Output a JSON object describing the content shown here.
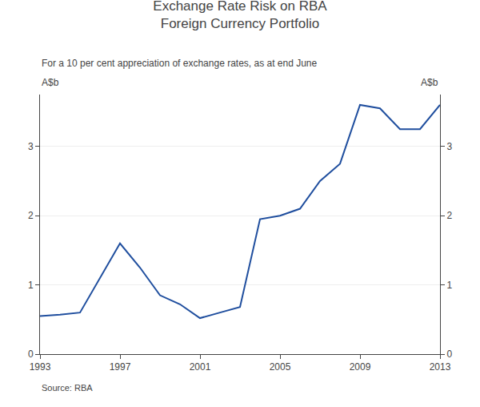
{
  "chart_data": {
    "type": "line",
    "title": "Exchange Rate Risk on RBA\nForeign Currency Portfolio",
    "subtitle": "For a 10 per cent appreciation of exchange rates, as at end June",
    "ylabel": "A$b",
    "y2label": "A$b",
    "annotations": [
      "Source: RBA"
    ],
    "x": [
      1993,
      1994,
      1995,
      1996,
      1997,
      1998,
      1999,
      2000,
      2001,
      2002,
      2003,
      2004,
      2005,
      2006,
      2007,
      2008,
      2009,
      2010,
      2011,
      2012,
      2013
    ],
    "values": [
      0.55,
      0.57,
      0.6,
      1.1,
      1.6,
      1.25,
      0.85,
      0.72,
      0.52,
      0.6,
      0.68,
      1.95,
      2.0,
      2.1,
      2.5,
      2.75,
      3.6,
      3.55,
      3.25,
      3.25,
      3.6
    ],
    "color": "#1f4e9e",
    "xlim": [
      1993,
      2013
    ],
    "xticks": [
      1993,
      1997,
      2001,
      2005,
      2009,
      2013
    ],
    "ylim": [
      0,
      3.75
    ],
    "yticks": [
      0,
      1,
      2,
      3
    ],
    "y2lim": [
      0,
      3.75
    ],
    "y2ticks": [
      0,
      1,
      2,
      3
    ],
    "grid": "y"
  }
}
